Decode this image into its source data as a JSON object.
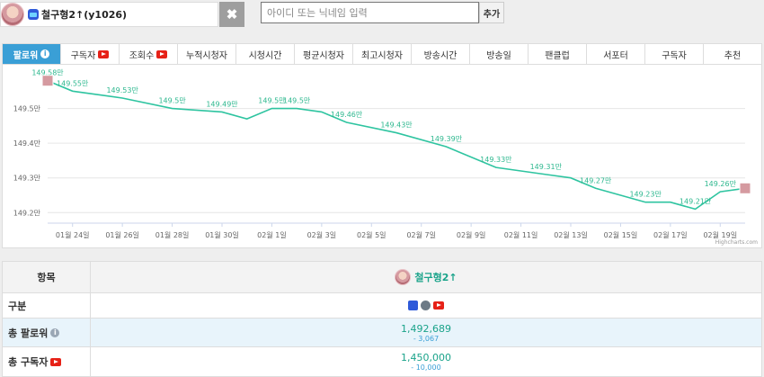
{
  "top": {
    "selected_name": "철구형2↑(y1026)",
    "remove_symbol": "✖",
    "search_placeholder": "아이디 또는 닉네임 입력",
    "add_label": "추가"
  },
  "tabs": [
    {
      "label": "팔로워",
      "suffix": "info"
    },
    {
      "label": "구독자",
      "suffix": "youtube"
    },
    {
      "label": "조회수",
      "suffix": "youtube"
    },
    {
      "label": "누적시청자"
    },
    {
      "label": "시청시간"
    },
    {
      "label": "평균시청자"
    },
    {
      "label": "최고시청자"
    },
    {
      "label": "방송시간"
    },
    {
      "label": "방송일"
    },
    {
      "label": "팬클럽"
    },
    {
      "label": "서포터"
    },
    {
      "label": "구독자"
    },
    {
      "label": "추천"
    }
  ],
  "chart_data": {
    "type": "line",
    "title": "",
    "xlabel": "",
    "ylabel": "",
    "y_ticks": [
      "149.2만",
      "149.3만",
      "149.4만",
      "149.5만"
    ],
    "y_tick_values": [
      149.2,
      149.3,
      149.4,
      149.5
    ],
    "ylim": [
      149.18,
      149.6
    ],
    "x_ticks": [
      "01월 24일",
      "01월 26일",
      "01월 28일",
      "01월 30일",
      "02월 1일",
      "02월 3일",
      "02월 5일",
      "02월 7일",
      "02월 9일",
      "02월 11일",
      "02월 13일",
      "02월 15일",
      "02월 17일",
      "02월 19일"
    ],
    "x_tick_days": [
      1,
      3,
      5,
      7,
      9,
      11,
      13,
      15,
      17,
      19,
      21,
      23,
      25,
      27
    ],
    "xlim": [
      0,
      28
    ],
    "series": [
      {
        "color": "#2ec4a0",
        "points": [
          {
            "d": 0,
            "v": 149.58,
            "label": "149.58만"
          },
          {
            "d": 1,
            "v": 149.55,
            "label": "149.55만"
          },
          {
            "d": 3,
            "v": 149.53,
            "label": "149.53만"
          },
          {
            "d": 5,
            "v": 149.5,
            "label": "149.5만"
          },
          {
            "d": 7,
            "v": 149.49,
            "label": "149.49만"
          },
          {
            "d": 8,
            "v": 149.47
          },
          {
            "d": 9,
            "v": 149.5,
            "label": "149.5만"
          },
          {
            "d": 10,
            "v": 149.5,
            "label": "149.5만"
          },
          {
            "d": 11,
            "v": 149.49
          },
          {
            "d": 12,
            "v": 149.46,
            "label": "149.46만"
          },
          {
            "d": 14,
            "v": 149.43,
            "label": "149.43만"
          },
          {
            "d": 16,
            "v": 149.39,
            "label": "149.39만"
          },
          {
            "d": 18,
            "v": 149.33,
            "label": "149.33만"
          },
          {
            "d": 20,
            "v": 149.31,
            "label": "149.31만"
          },
          {
            "d": 21,
            "v": 149.3
          },
          {
            "d": 22,
            "v": 149.27,
            "label": "149.27만"
          },
          {
            "d": 24,
            "v": 149.23,
            "label": "149.23만"
          },
          {
            "d": 25,
            "v": 149.23
          },
          {
            "d": 26,
            "v": 149.21,
            "label": "149.21만"
          },
          {
            "d": 27,
            "v": 149.26,
            "label": "149.26만"
          },
          {
            "d": 28,
            "v": 149.27
          }
        ]
      }
    ],
    "grid": true,
    "credits": "Highcharts.com"
  },
  "table": {
    "header_label": "항목",
    "column_name": "철구형2↑",
    "rows": [
      {
        "label": "구분"
      },
      {
        "label": "총 팔로워",
        "value": "1,492,689",
        "change": "- 3,067"
      },
      {
        "label": "총 구독자",
        "value": "1,450,000",
        "change": "- 10,000"
      }
    ]
  }
}
